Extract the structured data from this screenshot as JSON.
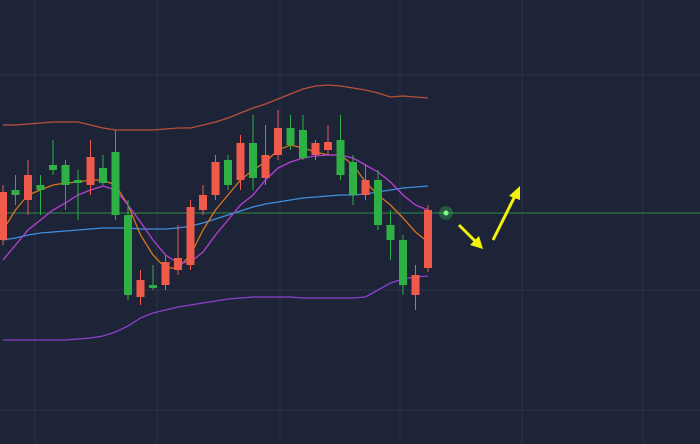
{
  "chart_data": {
    "type": "candlestick",
    "ylim": [
      0,
      444
    ],
    "up_color": "#ef5a4b",
    "down_color": "#2fb045",
    "open": [
      204,
      254,
      244,
      259,
      279,
      279,
      264,
      259,
      276,
      292,
      229,
      147,
      159,
      159,
      174,
      179,
      234,
      249,
      284,
      264,
      301,
      266,
      289,
      316,
      314,
      289,
      294,
      304,
      282,
      249,
      264,
      219,
      204,
      149,
      176
    ],
    "high": [
      259,
      269,
      284,
      269,
      304,
      284,
      274,
      304,
      289,
      314,
      244,
      174,
      179,
      189,
      219,
      244,
      259,
      289,
      289,
      309,
      329,
      319,
      334,
      329,
      329,
      304,
      319,
      329,
      289,
      279,
      274,
      234,
      209,
      179,
      239
    ],
    "low": [
      199,
      239,
      229,
      229,
      269,
      234,
      224,
      249,
      259,
      224,
      144,
      139,
      154,
      154,
      169,
      174,
      229,
      244,
      254,
      254,
      254,
      259,
      284,
      294,
      284,
      284,
      289,
      264,
      239,
      244,
      214,
      184,
      149,
      134,
      172
    ],
    "close": [
      252,
      249,
      269,
      254,
      274,
      259,
      261,
      287,
      261,
      229,
      149,
      164,
      156,
      182,
      186,
      237,
      249,
      282,
      259,
      301,
      266,
      289,
      316,
      299,
      286,
      301,
      302,
      269,
      249,
      264,
      219,
      204,
      159,
      169,
      234
    ],
    "overlays": [
      {
        "color": "#b8503a",
        "values": [
          319,
          319,
          320,
          321,
          322,
          322,
          322,
          319,
          316,
          314,
          314,
          314,
          314,
          315,
          316,
          316,
          319,
          322,
          326,
          331,
          336,
          340,
          345,
          350,
          355,
          358,
          359,
          358,
          356,
          354,
          351,
          347,
          348,
          347,
          346
        ]
      },
      {
        "color": "#8a3fd0",
        "values": [
          104,
          104,
          104,
          104,
          104,
          104,
          105,
          106,
          108,
          112,
          118,
          126,
          131,
          134,
          137,
          139,
          141,
          143,
          145,
          146,
          147,
          147,
          147,
          147,
          146,
          146,
          146,
          146,
          146,
          147,
          154,
          161,
          165,
          167,
          168
        ]
      },
      {
        "color": "#3d8fe0",
        "values": [
          204,
          206,
          209,
          211,
          212,
          213,
          214,
          215,
          216,
          216,
          216,
          215,
          215,
          215,
          216,
          218,
          221,
          225,
          229,
          233,
          237,
          240,
          242,
          244,
          246,
          247,
          248,
          249,
          249,
          250,
          252,
          254,
          256,
          257,
          258
        ]
      },
      {
        "color": "#d6761e",
        "values": [
          214,
          234,
          249,
          254,
          259,
          261,
          262,
          264,
          264,
          259,
          239,
          209,
          189,
          176,
          176,
          189,
          214,
          234,
          249,
          264,
          274,
          282,
          294,
          299,
          296,
          292,
          289,
          289,
          279,
          262,
          249,
          239,
          226,
          212,
          202
        ]
      },
      {
        "color": "#b53fd6",
        "values": [
          184,
          199,
          214,
          224,
          234,
          241,
          249,
          254,
          258,
          254,
          239,
          222,
          204,
          189,
          181,
          182,
          192,
          209,
          224,
          239,
          249,
          264,
          276,
          282,
          286,
          288,
          289,
          289,
          286,
          279,
          272,
          262,
          249,
          239,
          234
        ]
      }
    ],
    "price_line": 231,
    "price_line_color": "#2e8a4a"
  }
}
